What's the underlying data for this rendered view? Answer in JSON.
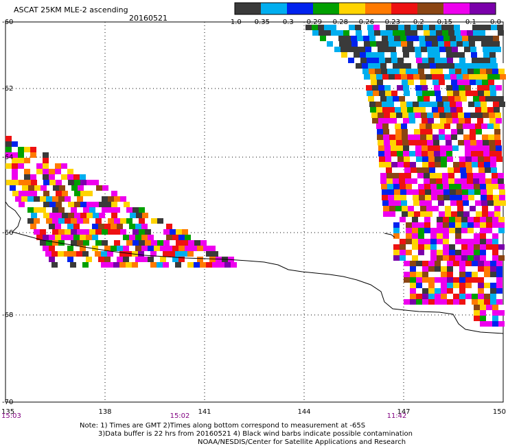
{
  "header": {
    "title": "ASCAT 25KM MLE-2 ascending",
    "date": "20160521"
  },
  "colorbar": {
    "colors": [
      "#3a3a3a",
      "#00aeef",
      "#0022ee",
      "#00a000",
      "#ffd400",
      "#ff7a00",
      "#ee1111",
      "#8b4513",
      "#ee00ee",
      "#7a00aa"
    ],
    "labels": [
      "-1.0",
      "-0.35",
      "-0.3",
      "-0.29",
      "-0.28",
      "-0.26",
      "-0.23",
      "-0.2",
      "-0.15",
      "-0.1",
      "0.0"
    ]
  },
  "axes": {
    "x_ticks": [
      "135",
      "138",
      "141",
      "144",
      "147",
      "150"
    ],
    "y_ticks": [
      "-60",
      "-62",
      "-64",
      "-66",
      "-68",
      "-70"
    ],
    "time_labels": [
      "15:03",
      "15:02",
      "11:42"
    ]
  },
  "notes": [
    "Note: 1) Times are GMT 2)Times along bottom correspond to measurement at -65S",
    "3)Data buffer is 22 hrs from 20160521 4) Black wind barbs indicate possible contamination",
    "NOAA/NESDIS/Center for Satellite Applications and Research"
  ]
}
